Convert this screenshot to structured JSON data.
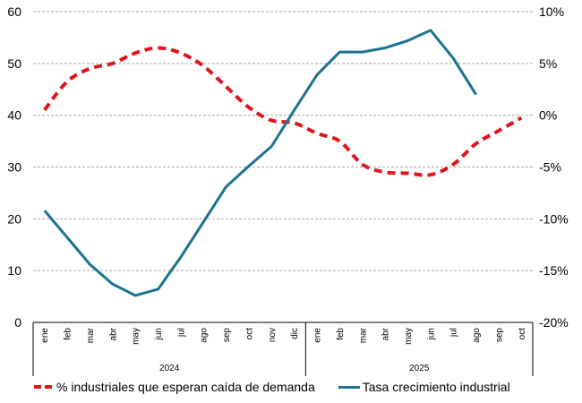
{
  "chart_data": {
    "type": "line",
    "title": "",
    "categories": [
      "ene",
      "feb",
      "mar",
      "abr",
      "may",
      "jun",
      "jul",
      "ago",
      "sep",
      "oct",
      "nov",
      "dic",
      "ene",
      "feb",
      "mar",
      "abr",
      "may",
      "jun",
      "jul",
      "ago",
      "sep",
      "oct"
    ],
    "category_groups": [
      {
        "label": "2024",
        "count": 12
      },
      {
        "label": "2025",
        "count": 10
      }
    ],
    "left_axis": {
      "ylim": [
        0,
        60
      ],
      "ticks": [
        "0",
        "10",
        "20",
        "30",
        "40",
        "50",
        "60"
      ],
      "tick_values": [
        0,
        10,
        20,
        30,
        40,
        50,
        60
      ]
    },
    "right_axis": {
      "ylim": [
        -20,
        10
      ],
      "ticks": [
        "-20%",
        "-15%",
        "-10%",
        "-5%",
        "0%",
        "5%",
        "10%"
      ],
      "tick_values": [
        -20,
        -15,
        -10,
        -5,
        0,
        5,
        10
      ]
    },
    "grid": true,
    "legend_position": "bottom",
    "series": [
      {
        "name": "% industriales que esperan caída de demanda",
        "axis": "left",
        "style": "dashed",
        "color": "#e0141c",
        "values": [
          41,
          46.5,
          49,
          50,
          52,
          53,
          52,
          49.5,
          45.5,
          41.5,
          39,
          38.5,
          36.5,
          35,
          30.5,
          29,
          28.8,
          28.5,
          30.5,
          34.5,
          37,
          39.5
        ]
      },
      {
        "name": "Tasa crecimiento industrial",
        "axis": "right",
        "style": "solid",
        "color": "#1a7393",
        "values": [
          -9.2,
          -11.8,
          -14.4,
          -16.3,
          -17.4,
          -16.8,
          -13.7,
          -10.3,
          -6.9,
          -4.9,
          -3.0,
          0.5,
          3.9,
          6.1,
          6.1,
          6.5,
          7.2,
          8.2,
          5.5,
          2.0,
          null,
          null
        ]
      }
    ]
  }
}
